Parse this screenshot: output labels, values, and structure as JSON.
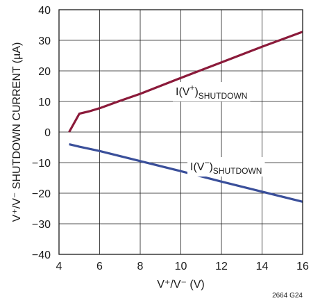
{
  "chart_data": {
    "type": "line",
    "xlabel": "V⁺/V⁻ (V)",
    "ylabel": "V⁺/V⁻ SHUTDOWN CURRENT (µA)",
    "xlim": [
      4,
      16
    ],
    "ylim": [
      -40,
      40
    ],
    "x_ticks": [
      "4",
      "6",
      "8",
      "10",
      "12",
      "14",
      "16"
    ],
    "y_ticks": [
      "40",
      "30",
      "20",
      "10",
      "0",
      "−10",
      "−20",
      "−30",
      "−40"
    ],
    "grid": true,
    "series": [
      {
        "name": "I(V⁺)SHUTDOWN",
        "color": "#8b1a3a",
        "x": [
          4.5,
          5.0,
          5.5,
          6.0,
          7.0,
          8.0,
          10.0,
          12.0,
          14.0,
          16.0
        ],
        "y": [
          0.0,
          6.0,
          6.8,
          7.8,
          10.2,
          12.5,
          17.7,
          22.8,
          27.9,
          32.8
        ]
      },
      {
        "name": "I(V⁻)SHUTDOWN",
        "color": "#3a4f9a",
        "x": [
          4.5,
          5.0,
          6.0,
          8.0,
          10.0,
          12.0,
          14.0,
          16.0
        ],
        "y": [
          -4.0,
          -4.8,
          -6.2,
          -9.5,
          -12.8,
          -16.2,
          -19.5,
          -22.8
        ]
      }
    ],
    "annotations": [
      {
        "base": "I(V",
        "sup": "+",
        "close": ")",
        "sub": "SHUTDOWN"
      },
      {
        "base": "I(V",
        "sup": "−",
        "close": ")",
        "sub": "SHUTDOWN"
      }
    ],
    "figure_code": "2664 G24"
  }
}
